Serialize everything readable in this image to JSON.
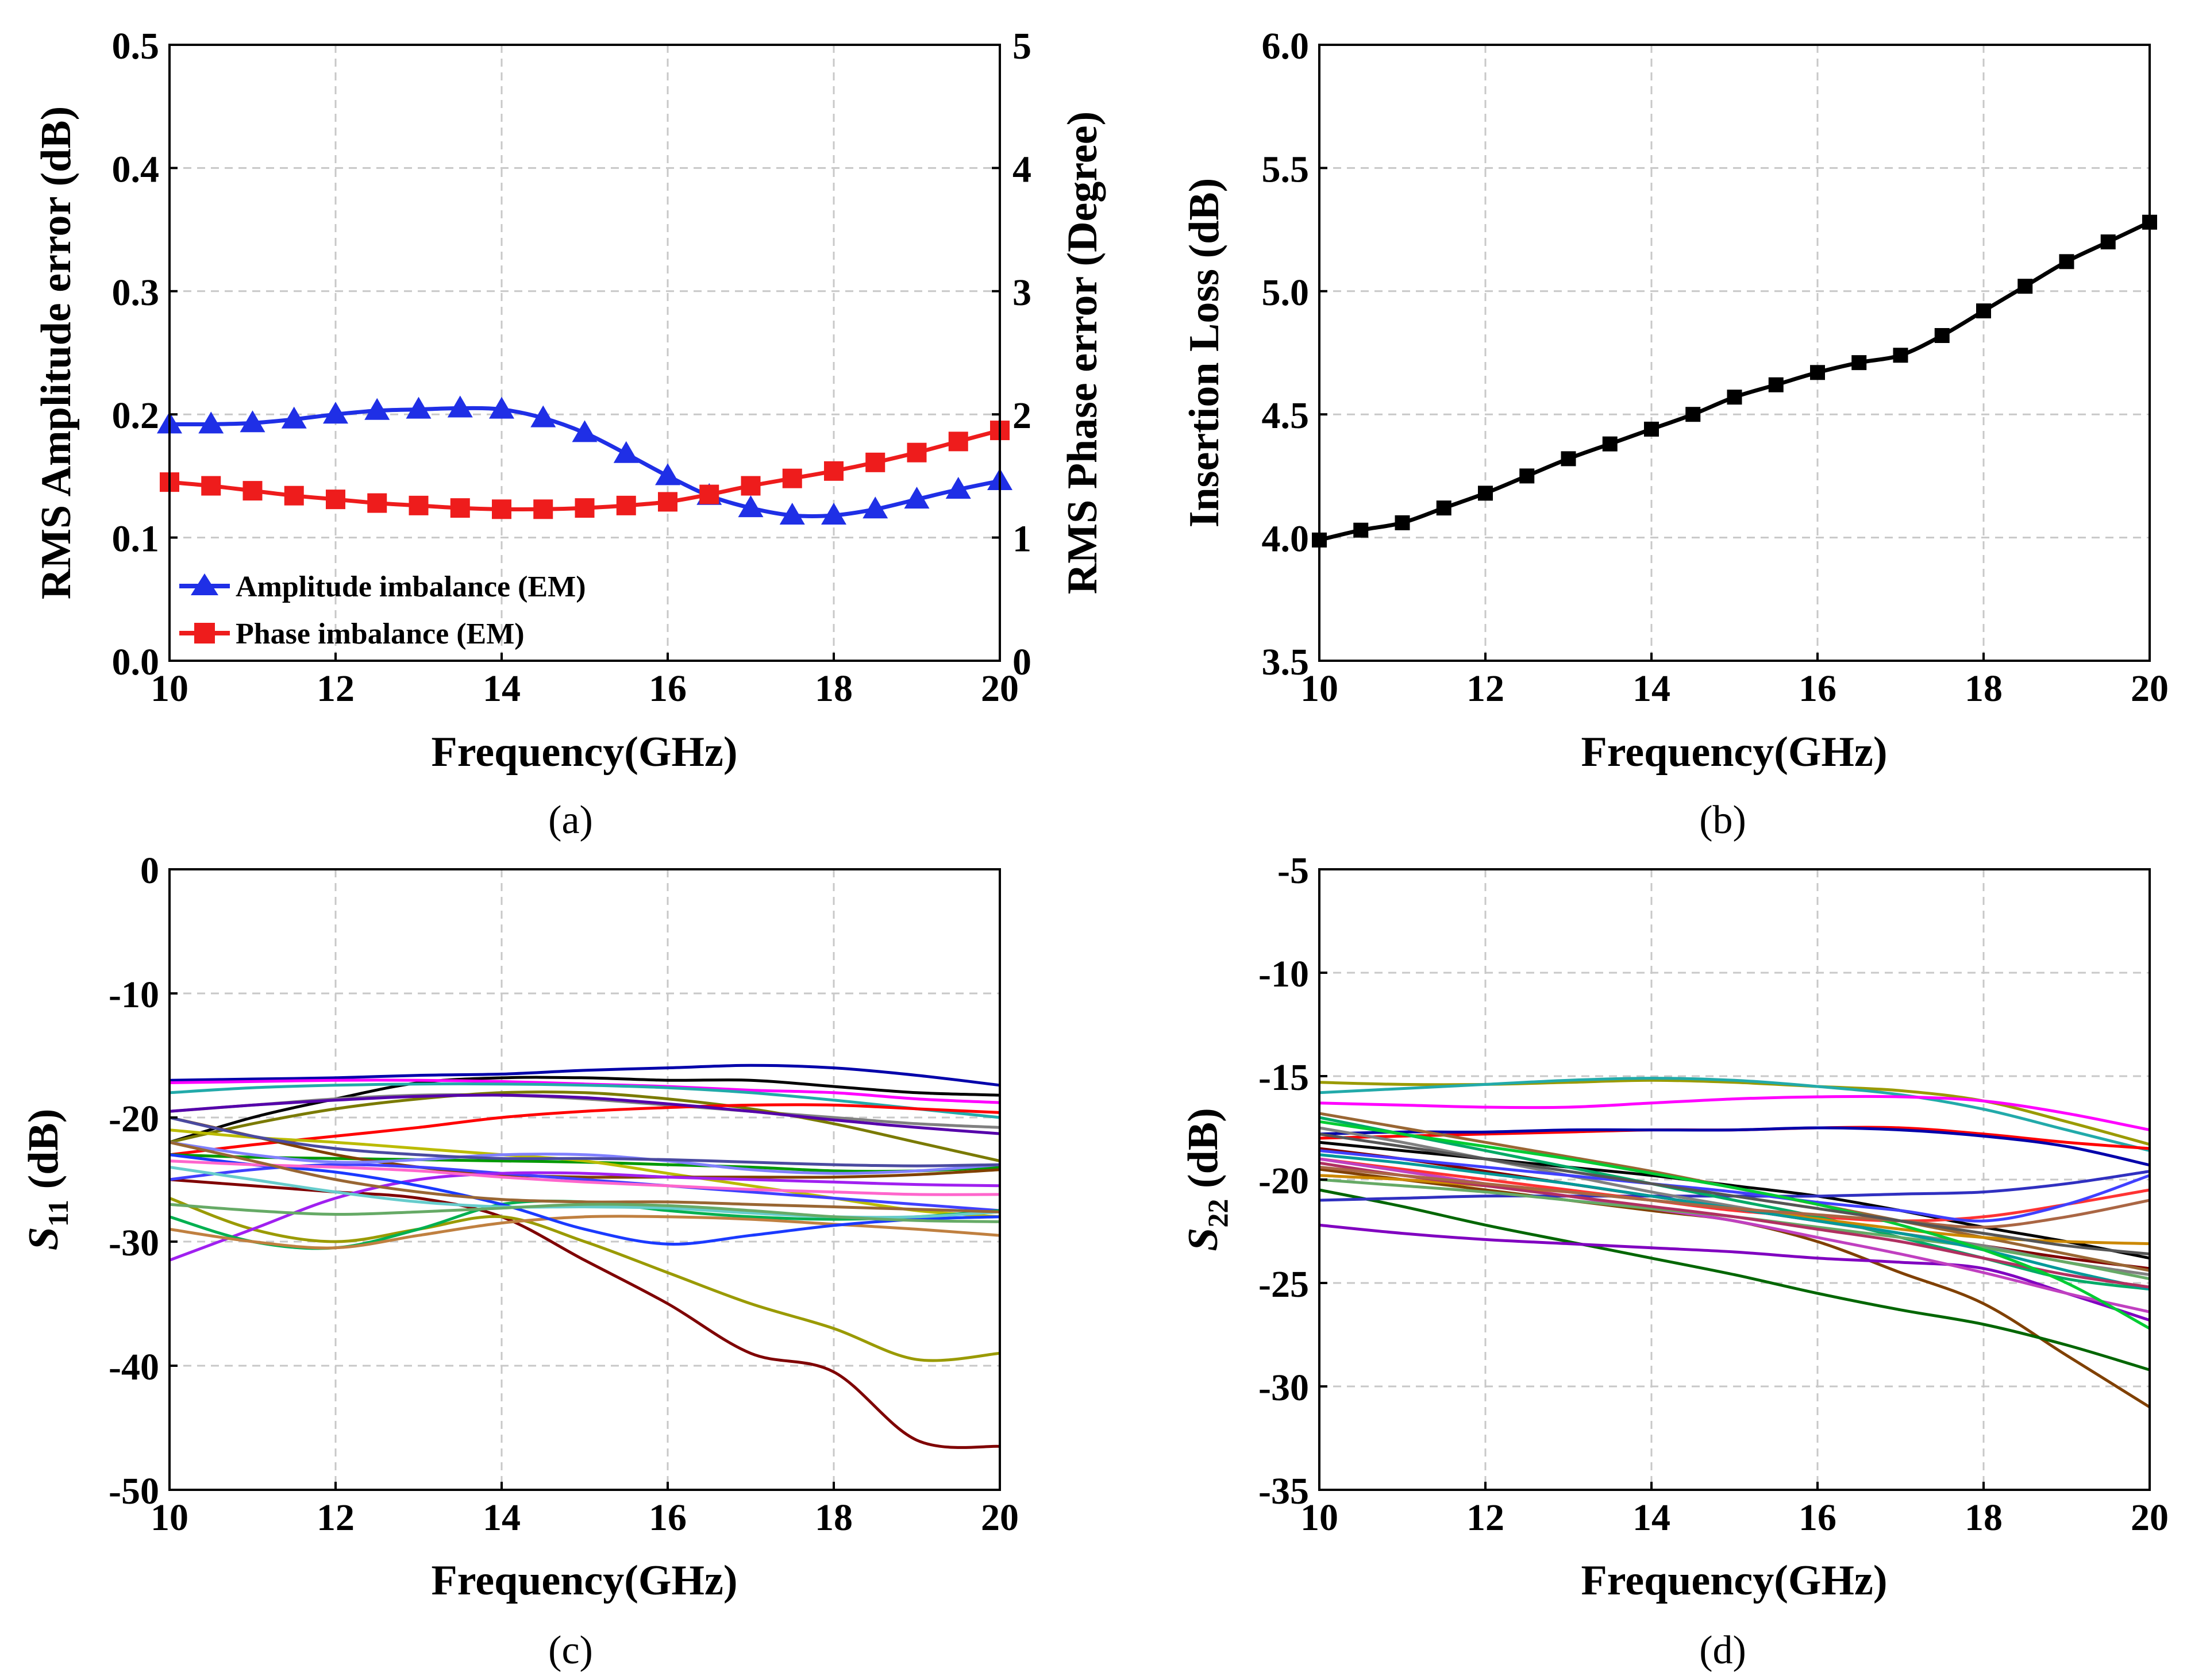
{
  "panels": {
    "a": {
      "caption": "(a)",
      "xlabel": "Frequency(GHz)",
      "ylabel": "RMS Amplitude error (dB)",
      "y2label": "RMS Phase error (Degree)"
    },
    "b": {
      "caption": "(b)",
      "xlabel": "Frequency(GHz)",
      "ylabel": "Insertion Loss (dB)"
    },
    "c": {
      "caption": "(c)",
      "xlabel": "Frequency(GHz)",
      "ylabel_main": "S",
      "ylabel_sub": "11",
      "ylabel_unit": " (dB)"
    },
    "d": {
      "caption": "(d)",
      "xlabel": "Frequency(GHz)",
      "ylabel_main": "S",
      "ylabel_sub": "22",
      "ylabel_unit": " (dB)"
    }
  },
  "legend_a": {
    "amplitude": "Amplitude imbalance (EM)",
    "phase": "Phase imbalance (EM)"
  },
  "colors": {
    "amplitude": "#1f2fe6",
    "phase": "#ee1c1c",
    "insertion": "#000000"
  },
  "chart_data": [
    {
      "id": "a",
      "type": "line",
      "x": [
        10,
        10.5,
        11,
        11.5,
        12,
        12.5,
        13,
        13.5,
        14,
        14.5,
        15,
        15.5,
        16,
        16.5,
        17,
        17.5,
        18,
        18.5,
        19,
        19.5,
        20
      ],
      "xlim": [
        10,
        20
      ],
      "xticks": [
        10,
        12,
        14,
        16,
        18,
        20
      ],
      "ylim": [
        0,
        0.5
      ],
      "yticks": [
        0.0,
        0.1,
        0.2,
        0.3,
        0.4,
        0.5
      ],
      "y2lim": [
        0,
        5
      ],
      "y2ticks": [
        0,
        1,
        2,
        3,
        4,
        5
      ],
      "series": [
        {
          "name": "Amplitude imbalance (EM)",
          "axis": "left",
          "marker": "triangle",
          "values": [
            0.192,
            0.192,
            0.193,
            0.196,
            0.2,
            0.203,
            0.204,
            0.205,
            0.204,
            0.197,
            0.185,
            0.168,
            0.15,
            0.134,
            0.124,
            0.118,
            0.118,
            0.123,
            0.131,
            0.139,
            0.146
          ]
        },
        {
          "name": "Phase imbalance (EM)",
          "axis": "right",
          "marker": "square",
          "values": [
            1.45,
            1.42,
            1.38,
            1.34,
            1.31,
            1.28,
            1.26,
            1.24,
            1.23,
            1.23,
            1.24,
            1.26,
            1.29,
            1.35,
            1.42,
            1.48,
            1.54,
            1.61,
            1.69,
            1.78,
            1.87
          ]
        }
      ]
    },
    {
      "id": "b",
      "type": "line",
      "x": [
        10,
        10.5,
        11,
        11.5,
        12,
        12.5,
        13,
        13.5,
        14,
        14.5,
        15,
        15.5,
        16,
        16.5,
        17,
        17.5,
        18,
        18.5,
        19,
        19.5,
        20
      ],
      "xlim": [
        10,
        20
      ],
      "xticks": [
        10,
        12,
        14,
        16,
        18,
        20
      ],
      "ylim": [
        3.5,
        6.0
      ],
      "yticks": [
        "3.5",
        "4.0",
        "4.5",
        "5.0",
        "5.5",
        "6.0"
      ],
      "series": [
        {
          "name": "Insertion Loss",
          "marker": "square",
          "values": [
            3.99,
            4.03,
            4.06,
            4.12,
            4.18,
            4.25,
            4.32,
            4.38,
            4.44,
            4.5,
            4.57,
            4.62,
            4.67,
            4.71,
            4.74,
            4.82,
            4.92,
            5.02,
            5.12,
            5.2,
            5.28
          ]
        }
      ]
    },
    {
      "id": "c",
      "type": "line",
      "x": [
        10,
        11,
        12,
        13,
        14,
        15,
        16,
        17,
        18,
        19,
        20
      ],
      "xlim": [
        10,
        20
      ],
      "xticks": [
        10,
        12,
        14,
        16,
        18,
        20
      ],
      "ylim": [
        -50,
        0
      ],
      "yticks": [
        -50,
        -40,
        -30,
        -20,
        -10,
        0
      ],
      "series": [
        {
          "color": "#7f0000",
          "values": [
            -25,
            -25.5,
            -26,
            -26.5,
            -28,
            -31.5,
            -35,
            -39,
            -40.5,
            -46,
            -46.5
          ]
        },
        {
          "color": "#9a9a00",
          "values": [
            -26.5,
            -29,
            -30,
            -29,
            -28,
            -30,
            -32.5,
            -35,
            -37,
            -39.5,
            -39
          ]
        },
        {
          "color": "#0000aa",
          "values": [
            -17,
            -16.9,
            -16.8,
            -16.6,
            -16.5,
            -16.2,
            -16,
            -15.8,
            -16,
            -16.6,
            -17.4
          ]
        },
        {
          "color": "#000000",
          "values": [
            -22,
            -20,
            -18.5,
            -17.2,
            -16.8,
            -16.8,
            -17,
            -17,
            -17.5,
            -18,
            -18.2
          ]
        },
        {
          "color": "#ff00ff",
          "values": [
            -17.2,
            -17.1,
            -17,
            -17,
            -17.1,
            -17.3,
            -17.5,
            -17.8,
            -18,
            -18.5,
            -18.8
          ]
        },
        {
          "color": "#22aaaa",
          "values": [
            -18,
            -17.6,
            -17.4,
            -17.3,
            -17.3,
            -17.4,
            -17.6,
            -18,
            -18.6,
            -19.3,
            -20
          ]
        },
        {
          "color": "#808080",
          "values": [
            -19.5,
            -19,
            -18.5,
            -18.2,
            -18.2,
            -18.5,
            -19,
            -19.5,
            -20,
            -20.5,
            -20.8
          ]
        },
        {
          "color": "#7a7a00",
          "values": [
            -22,
            -20.5,
            -19.3,
            -18.5,
            -18,
            -18,
            -18.5,
            -19.3,
            -20.5,
            -22,
            -23.5
          ]
        },
        {
          "color": "#ff0000",
          "values": [
            -23,
            -22.2,
            -21.5,
            -20.8,
            -20,
            -19.5,
            -19.2,
            -19,
            -19,
            -19.3,
            -19.6
          ]
        },
        {
          "color": "#5500aa",
          "values": [
            -19.5,
            -19,
            -18.6,
            -18.3,
            -18.2,
            -18.4,
            -18.9,
            -19.5,
            -20.2,
            -20.8,
            -21.3
          ]
        },
        {
          "color": "#009900",
          "values": [
            -23,
            -23.2,
            -23.3,
            -23.4,
            -23.5,
            -23.6,
            -23.8,
            -24,
            -24.3,
            -24.3,
            -24
          ]
        },
        {
          "color": "#bbbb00",
          "values": [
            -21,
            -21.6,
            -22,
            -22.5,
            -23,
            -23.5,
            -24.5,
            -25.5,
            -26.5,
            -27.5,
            -28
          ]
        },
        {
          "color": "#804000",
          "values": [
            -20,
            -21.5,
            -23,
            -24,
            -24.6,
            -24.8,
            -24.8,
            -24.8,
            -24.8,
            -24.6,
            -24.2
          ]
        },
        {
          "color": "#4040ff",
          "values": [
            -25,
            -24.2,
            -23.8,
            -24,
            -24.5,
            -25,
            -25.5,
            -26,
            -26.5,
            -27,
            -27.5
          ]
        },
        {
          "color": "#8080ff",
          "values": [
            -22,
            -23,
            -23.6,
            -23.4,
            -23,
            -23,
            -23.5,
            -24.2,
            -24.5,
            -24.3,
            -23.8
          ]
        },
        {
          "color": "#a020f0",
          "values": [
            -31.5,
            -29,
            -26.5,
            -25,
            -24.5,
            -24.5,
            -24.8,
            -25,
            -25.2,
            -25.4,
            -25.5
          ]
        },
        {
          "color": "#00b050",
          "values": [
            -28,
            -30,
            -30.5,
            -29,
            -27,
            -26.8,
            -27.5,
            -28,
            -28.2,
            -28,
            -27.5
          ]
        },
        {
          "color": "#c08040",
          "values": [
            -29,
            -30,
            -30.5,
            -29.5,
            -28.5,
            -28,
            -28,
            -28.2,
            -28.6,
            -29,
            -29.5
          ]
        },
        {
          "color": "#1a3aff",
          "values": [
            -23,
            -23.8,
            -24.4,
            -25.5,
            -27,
            -29,
            -30.2,
            -29.5,
            -28.7,
            -28.2,
            -28
          ]
        },
        {
          "color": "#ff66cc",
          "values": [
            -23.5,
            -23.8,
            -24,
            -24.3,
            -24.8,
            -25.2,
            -25.5,
            -25.8,
            -26,
            -26.2,
            -26.2
          ]
        },
        {
          "color": "#66cccc",
          "values": [
            -24,
            -25,
            -26,
            -26.8,
            -27.2,
            -27.2,
            -27.3,
            -27.7,
            -28,
            -28,
            -27.6
          ]
        },
        {
          "color": "#996633",
          "values": [
            -22,
            -23.5,
            -25,
            -26,
            -26.6,
            -26.8,
            -26.8,
            -27,
            -27.2,
            -27.4,
            -27.6
          ]
        },
        {
          "color": "#4a4aa0",
          "values": [
            -20,
            -21.5,
            -22.5,
            -23,
            -23.3,
            -23.3,
            -23.4,
            -23.6,
            -23.8,
            -23.9,
            -23.8
          ]
        },
        {
          "color": "#66aa66",
          "values": [
            -27,
            -27.5,
            -27.8,
            -27.6,
            -27.3,
            -27,
            -27.1,
            -27.5,
            -28,
            -28.3,
            -28.4
          ]
        }
      ]
    },
    {
      "id": "d",
      "type": "line",
      "x": [
        10,
        11,
        12,
        13,
        14,
        15,
        16,
        17,
        18,
        19,
        20
      ],
      "xlim": [
        10,
        20
      ],
      "xticks": [
        10,
        12,
        14,
        16,
        18,
        20
      ],
      "ylim": [
        -35,
        -5
      ],
      "yticks": [
        -35,
        -30,
        -25,
        -20,
        -15,
        -10,
        -5
      ],
      "series": [
        {
          "color": "#804000",
          "values": [
            -19.5,
            -20,
            -20.5,
            -21,
            -21.5,
            -22,
            -23,
            -24.5,
            -26,
            -28.5,
            -31
          ]
        },
        {
          "color": "#006600",
          "values": [
            -20.5,
            -21.3,
            -22.2,
            -23,
            -23.8,
            -24.6,
            -25.5,
            -26.3,
            -27,
            -28,
            -29.2
          ]
        },
        {
          "color": "#9a9a00",
          "values": [
            -15.3,
            -15.4,
            -15.4,
            -15.3,
            -15.2,
            -15.3,
            -15.5,
            -15.7,
            -16.2,
            -17.2,
            -18.3
          ]
        },
        {
          "color": "#22aaaa",
          "values": [
            -15.8,
            -15.6,
            -15.4,
            -15.2,
            -15.1,
            -15.2,
            -15.5,
            -15.9,
            -16.6,
            -17.6,
            -18.6
          ]
        },
        {
          "color": "#ff00ff",
          "values": [
            -16.3,
            -16.4,
            -16.5,
            -16.5,
            -16.3,
            -16.1,
            -16,
            -16,
            -16.2,
            -16.8,
            -17.6
          ]
        },
        {
          "color": "#ff0000",
          "values": [
            -18,
            -17.9,
            -17.8,
            -17.7,
            -17.6,
            -17.6,
            -17.5,
            -17.5,
            -17.8,
            -18.2,
            -18.5
          ]
        },
        {
          "color": "#0000aa",
          "values": [
            -17.8,
            -17.7,
            -17.7,
            -17.6,
            -17.6,
            -17.6,
            -17.5,
            -17.6,
            -17.9,
            -18.4,
            -19.3
          ]
        },
        {
          "color": "#000000",
          "values": [
            -18.2,
            -18.6,
            -19,
            -19.4,
            -19.8,
            -20.3,
            -20.8,
            -21.5,
            -22.3,
            -23,
            -23.8
          ]
        },
        {
          "color": "#3030c0",
          "values": [
            -21,
            -20.9,
            -20.8,
            -20.8,
            -20.8,
            -20.8,
            -20.8,
            -20.7,
            -20.6,
            -20.2,
            -19.6
          ]
        },
        {
          "color": "#ff3333",
          "values": [
            -19,
            -19.5,
            -20,
            -20.5,
            -21,
            -21.5,
            -21.8,
            -22,
            -21.8,
            -21.2,
            -20.5
          ]
        },
        {
          "color": "#7f0000",
          "values": [
            -18.5,
            -19,
            -19.6,
            -20.2,
            -20.8,
            -21.4,
            -22,
            -22.6,
            -23.2,
            -23.8,
            -24.3
          ]
        },
        {
          "color": "#8000c0",
          "values": [
            -22.2,
            -22.6,
            -22.9,
            -23.1,
            -23.3,
            -23.5,
            -23.8,
            -24,
            -24.3,
            -25.5,
            -26.8
          ]
        },
        {
          "color": "#00aa66",
          "values": [
            -17,
            -17.8,
            -18.6,
            -19.4,
            -20.2,
            -21,
            -21.8,
            -22.8,
            -23.8,
            -24.8,
            -25.3
          ]
        },
        {
          "color": "#996633",
          "values": [
            -16.8,
            -17.5,
            -18.2,
            -18.9,
            -19.6,
            -20.4,
            -21.2,
            -22,
            -22.8,
            -23.6,
            -24.4
          ]
        },
        {
          "color": "#c040c0",
          "values": [
            -19,
            -19.6,
            -20.2,
            -20.8,
            -21.4,
            -22,
            -22.8,
            -23.6,
            -24.5,
            -25.5,
            -26.4
          ]
        },
        {
          "color": "#808080",
          "values": [
            -17.5,
            -18.2,
            -19,
            -19.8,
            -20.6,
            -21.3,
            -22,
            -22.6,
            -23.2,
            -24,
            -24.6
          ]
        },
        {
          "color": "#4040ff",
          "values": [
            -18.6,
            -19,
            -19.4,
            -19.8,
            -20.2,
            -20.6,
            -21.1,
            -21.5,
            -22,
            -21.2,
            -19.8
          ]
        },
        {
          "color": "#66aa66",
          "values": [
            -20,
            -20.3,
            -20.6,
            -21,
            -21.4,
            -21.8,
            -22.3,
            -22.8,
            -23.3,
            -24,
            -24.8
          ]
        },
        {
          "color": "#cc8800",
          "values": [
            -19.8,
            -20,
            -20.3,
            -20.6,
            -21,
            -21.4,
            -21.9,
            -22.4,
            -22.8,
            -23,
            -23.1
          ]
        },
        {
          "color": "#009999",
          "values": [
            -18.8,
            -19.2,
            -19.7,
            -20.2,
            -20.8,
            -21.4,
            -22,
            -22.6,
            -23.4,
            -24.4,
            -25.3
          ]
        },
        {
          "color": "#b03060",
          "values": [
            -19.2,
            -19.8,
            -20.3,
            -20.8,
            -21.3,
            -21.8,
            -22.4,
            -23,
            -23.8,
            -24.6,
            -25.2
          ]
        },
        {
          "color": "#00cc33",
          "values": [
            -17.2,
            -17.8,
            -18.4,
            -19,
            -19.7,
            -20.4,
            -21.2,
            -22.2,
            -23.4,
            -25,
            -27.2
          ]
        },
        {
          "color": "#aa6644",
          "values": [
            -19.4,
            -19.8,
            -20.2,
            -20.6,
            -21,
            -21.4,
            -21.7,
            -22,
            -22.3,
            -21.8,
            -21
          ]
        },
        {
          "color": "#555555",
          "values": [
            -17.8,
            -18.4,
            -19,
            -19.6,
            -20.2,
            -20.8,
            -21.4,
            -22,
            -22.6,
            -23.2,
            -23.6
          ]
        }
      ]
    }
  ]
}
